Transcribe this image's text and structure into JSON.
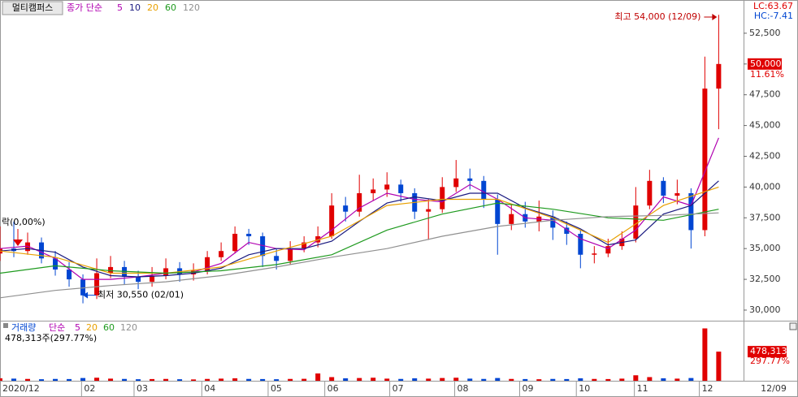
{
  "chart_data": {
    "type": "candlestick",
    "title": "멀티캠퍼스",
    "legend_prefix": "종가 단순",
    "lc_label": "LC:63.67",
    "hc_label": "HC:-7.41",
    "up_color": "#e00000",
    "down_color": "#0046d2",
    "x": [
      0,
      1,
      2,
      3,
      4,
      5,
      6,
      7,
      8,
      9,
      10,
      11,
      12,
      13,
      14,
      15,
      16,
      17,
      18,
      19,
      20,
      21,
      22,
      23,
      24,
      25,
      26,
      27,
      28,
      29,
      30,
      31,
      32,
      33,
      34,
      35,
      36,
      37,
      38,
      39,
      40,
      41,
      42,
      43,
      44,
      45,
      46,
      47,
      48,
      49,
      50,
      51,
      52
    ],
    "open": [
      34600,
      35000,
      34800,
      35500,
      34200,
      33300,
      32500,
      31200,
      33000,
      33500,
      32700,
      32300,
      32800,
      33400,
      32900,
      33200,
      34300,
      34800,
      36200,
      36000,
      34400,
      34000,
      35000,
      35500,
      36000,
      38500,
      38000,
      39500,
      39800,
      40200,
      39500,
      38000,
      38200,
      40000,
      40700,
      40500,
      39000,
      37000,
      37800,
      37200,
      37600,
      36700,
      36200,
      34500,
      34600,
      35200,
      35800,
      38500,
      40500,
      39300,
      39500,
      36500,
      48000
    ],
    "high": [
      36800,
      37200,
      36300,
      35900,
      34800,
      33900,
      32900,
      34200,
      34400,
      34000,
      33200,
      33500,
      34200,
      33900,
      33800,
      34800,
      35500,
      36800,
      36600,
      36300,
      35000,
      35600,
      36000,
      36800,
      39500,
      39200,
      41000,
      40700,
      41200,
      40600,
      39900,
      39000,
      40800,
      42200,
      41500,
      40900,
      39400,
      38600,
      38800,
      38900,
      38100,
      37200,
      36500,
      35200,
      35800,
      36400,
      40000,
      41400,
      40800,
      40600,
      39900,
      50600,
      54000
    ],
    "low": [
      34000,
      34300,
      34500,
      33800,
      32800,
      31900,
      30550,
      30900,
      32600,
      32100,
      31700,
      31900,
      32500,
      32300,
      32400,
      32900,
      34000,
      34600,
      35300,
      33500,
      33300,
      33700,
      34700,
      35100,
      35800,
      37200,
      37600,
      38900,
      39200,
      38800,
      37400,
      35700,
      37900,
      39600,
      39800,
      38300,
      34500,
      36500,
      36700,
      36400,
      35700,
      35300,
      33400,
      33800,
      34300,
      34900,
      35500,
      38200,
      38700,
      38600,
      35000,
      36000,
      44700
    ],
    "close": [
      35000,
      34800,
      35500,
      34200,
      33300,
      32500,
      31200,
      33000,
      33500,
      32700,
      32300,
      32800,
      33400,
      32900,
      33200,
      34300,
      34800,
      36200,
      36000,
      34400,
      34000,
      35000,
      35500,
      36000,
      38500,
      38000,
      39500,
      39800,
      40200,
      39500,
      38000,
      38200,
      40000,
      40700,
      40500,
      39000,
      37000,
      37800,
      37200,
      37600,
      36700,
      36200,
      34500,
      34600,
      35200,
      35800,
      38500,
      40500,
      39300,
      39500,
      36500,
      48000,
      50000
    ],
    "xlim": [
      0,
      53.8
    ],
    "ylim": [
      29140,
      55200
    ],
    "yticks": [
      {
        "value": 30000,
        "label": "30,000"
      },
      {
        "value": 32500,
        "label": "32,500"
      },
      {
        "value": 35000,
        "label": "35,000"
      },
      {
        "value": 37500,
        "label": "37,500"
      },
      {
        "value": 40000,
        "label": "40,000"
      },
      {
        "value": 42500,
        "label": "42,500"
      },
      {
        "value": 45000,
        "label": "45,000"
      },
      {
        "value": 47500,
        "label": "47,500"
      },
      {
        "value": 50000,
        "label": "50,000"
      },
      {
        "value": 52500,
        "label": "52,500"
      }
    ],
    "xticks": [
      {
        "value": 0,
        "label": "2020/12"
      },
      {
        "value": 5.9,
        "label": "02"
      },
      {
        "value": 9.7,
        "label": "03"
      },
      {
        "value": 14.6,
        "label": "04"
      },
      {
        "value": 19.4,
        "label": "05"
      },
      {
        "value": 23.5,
        "label": "06"
      },
      {
        "value": 28.2,
        "label": "07"
      },
      {
        "value": 32.9,
        "label": "08"
      },
      {
        "value": 37.6,
        "label": "09"
      },
      {
        "value": 41.7,
        "label": "10"
      },
      {
        "value": 45.9,
        "label": "11"
      },
      {
        "value": 50.6,
        "label": "12"
      }
    ],
    "last_date_label": "12/09",
    "ma_series": [
      {
        "name": "5",
        "color": "#b000b0",
        "x": [
          0,
          2,
          4,
          6,
          8,
          10,
          12,
          14,
          16,
          18,
          20,
          22,
          24,
          26,
          28,
          30,
          32,
          34,
          36,
          38,
          40,
          42,
          44,
          46,
          48,
          50,
          52
        ],
        "values": [
          35000,
          35200,
          34200,
          32500,
          32500,
          32700,
          33000,
          33100,
          33800,
          35500,
          35000,
          34900,
          36500,
          38300,
          39500,
          39000,
          38800,
          40200,
          39000,
          37500,
          37300,
          35800,
          35000,
          36500,
          39200,
          38500,
          44000
        ]
      },
      {
        "name": "10",
        "color": "#1a1a80",
        "x": [
          0,
          2,
          4,
          6,
          8,
          10,
          12,
          14,
          16,
          18,
          20,
          22,
          24,
          26,
          28,
          30,
          32,
          34,
          36,
          38,
          40,
          42,
          44,
          46,
          48,
          50,
          52
        ],
        "values": [
          34800,
          35000,
          34700,
          33500,
          32800,
          32700,
          32800,
          33000,
          33400,
          34500,
          35000,
          35000,
          35600,
          37200,
          38700,
          39200,
          38900,
          39500,
          39500,
          38300,
          37600,
          36600,
          35300,
          35700,
          37800,
          38500,
          40500
        ]
      },
      {
        "name": "20",
        "color": "#e8a000",
        "x": [
          0,
          4,
          8,
          12,
          16,
          20,
          24,
          28,
          32,
          36,
          40,
          44,
          48,
          52
        ],
        "values": [
          34800,
          34300,
          33000,
          33000,
          33500,
          34800,
          36000,
          38500,
          39000,
          39000,
          37500,
          35500,
          38500,
          40000
        ]
      },
      {
        "name": "60",
        "color": "#1e9a1e",
        "x": [
          0,
          4,
          8,
          12,
          16,
          20,
          24,
          28,
          32,
          36,
          40,
          44,
          48,
          52
        ],
        "values": [
          33000,
          33600,
          33200,
          33000,
          33200,
          33700,
          34500,
          36500,
          37800,
          38700,
          38200,
          37500,
          37300,
          38200
        ]
      },
      {
        "name": "120",
        "color": "#909090",
        "x": [
          0,
          4,
          8,
          12,
          16,
          20,
          24,
          28,
          32,
          36,
          40,
          44,
          48,
          52
        ],
        "values": [
          31000,
          31600,
          32000,
          32300,
          32800,
          33500,
          34300,
          35000,
          36000,
          36800,
          37300,
          37600,
          37700,
          37900
        ]
      }
    ],
    "high_annotation": "최고 54,000 (12/09)",
    "low_annotation": "최저 30,550 (02/01)",
    "left_label": "락(0,00%)",
    "last_price_label": "50,000",
    "change_label": "11.61%",
    "volume": {
      "title": "거래량",
      "legend_prefix": "단순",
      "legend": [
        {
          "name": "5",
          "color": "#b000b0"
        },
        {
          "name": "20",
          "color": "#e8a000"
        },
        {
          "name": "60",
          "color": "#1e9a1e"
        },
        {
          "name": "120",
          "color": "#909090"
        }
      ],
      "info_label": "478,313주(297.77%)",
      "last_label": "478,313",
      "last_pct_label": "297.77%",
      "ylim": [
        0,
        960000
      ],
      "values": [
        40000,
        35000,
        30000,
        25000,
        30000,
        28000,
        45000,
        50000,
        35000,
        30000,
        25000,
        28000,
        30000,
        25000,
        22000,
        30000,
        35000,
        40000,
        30000,
        28000,
        25000,
        30000,
        32000,
        120000,
        60000,
        40000,
        45000,
        50000,
        35000,
        30000,
        40000,
        35000,
        45000,
        50000,
        35000,
        30000,
        45000,
        30000,
        28000,
        25000,
        30000,
        28000,
        40000,
        30000,
        28000,
        35000,
        90000,
        60000,
        40000,
        35000,
        45000,
        860000,
        478313
      ]
    }
  }
}
